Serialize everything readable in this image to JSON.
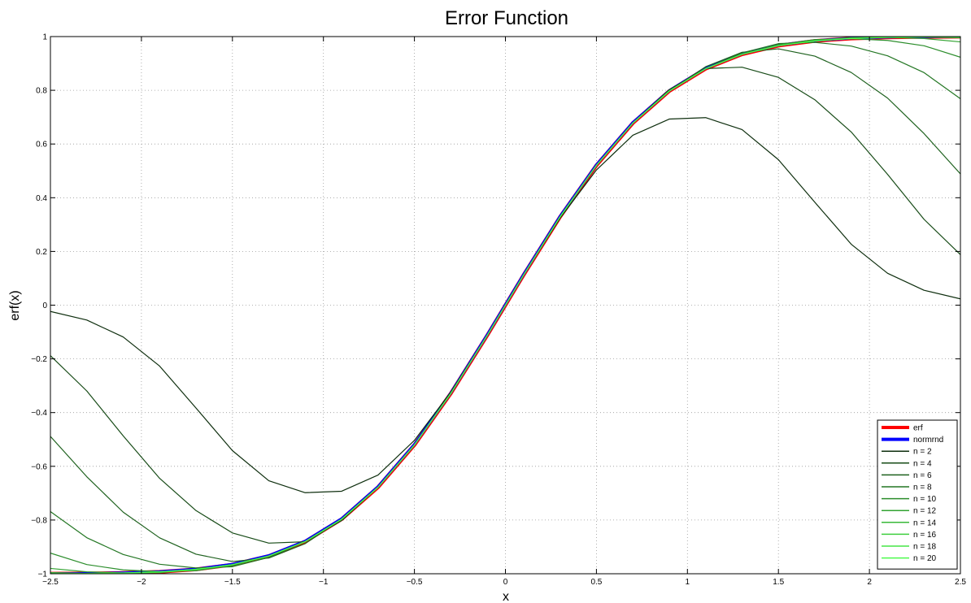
{
  "chart_data": {
    "type": "line",
    "title": "Error Function",
    "xlabel": "x",
    "ylabel": "erf(x)",
    "xlim": [
      -2.5,
      2.5
    ],
    "ylim": [
      -1,
      1
    ],
    "xticks": [
      -2.5,
      -2,
      -1.5,
      -1,
      -0.5,
      0,
      0.5,
      1,
      1.5,
      2,
      2.5
    ],
    "yticks": [
      -1,
      -0.8,
      -0.6,
      -0.4,
      -0.2,
      0,
      0.2,
      0.4,
      0.6,
      0.8,
      1
    ],
    "xtick_labels": [
      "−2.5",
      "−2",
      "−1.5",
      "−1",
      "−0.5",
      "0",
      "0.5",
      "1",
      "1.5",
      "2",
      "2.5"
    ],
    "ytick_labels": [
      "−1",
      "−0.8",
      "−0.6",
      "−0.4",
      "−0.2",
      "0",
      "0.2",
      "0.4",
      "0.6",
      "0.8",
      "1"
    ],
    "grid": true,
    "legend_position": "bottom-right",
    "x": [
      -2.5,
      -2.3,
      -2.1,
      -1.9,
      -1.7,
      -1.5,
      -1.3,
      -1.1,
      -0.9,
      -0.7,
      -0.5,
      -0.3,
      -0.1,
      0.1,
      0.3,
      0.5,
      0.7,
      0.9,
      1.1,
      1.3,
      1.5,
      1.7,
      1.9,
      2.1,
      2.3,
      2.5
    ],
    "series": [
      {
        "name": "erf",
        "color": "#ff0000",
        "width": 4.5,
        "values": [
          -0.9996,
          -0.9989,
          -0.997,
          -0.9928,
          -0.9838,
          -0.9661,
          -0.934,
          -0.8802,
          -0.7969,
          -0.6778,
          -0.5205,
          -0.3286,
          -0.1125,
          0.1125,
          0.3286,
          0.5205,
          0.6778,
          0.7969,
          0.8802,
          0.934,
          0.9661,
          0.9838,
          0.9928,
          0.997,
          0.9989,
          0.9996
        ]
      },
      {
        "name": "normrnd",
        "color": "#0000ff",
        "width": 3,
        "values": [
          -0.9993,
          -0.9986,
          -0.9962,
          -0.9915,
          -0.9823,
          -0.9642,
          -0.9318,
          -0.8778,
          -0.7945,
          -0.6752,
          -0.5178,
          -0.3259,
          -0.1098,
          0.1152,
          0.3313,
          0.5232,
          0.6804,
          0.7993,
          0.8826,
          0.9362,
          0.9681,
          0.9853,
          0.994,
          0.9978,
          0.9993,
          0.9998
        ]
      },
      {
        "name": "n = 2",
        "color": "#0e2e0e",
        "width": 1.2,
        "values": [
          -0.0234,
          -0.0555,
          -0.1186,
          -0.2268,
          -0.3831,
          -0.5416,
          -0.6537,
          -0.6982,
          -0.6928,
          -0.6327,
          -0.5034,
          -0.3236,
          -0.1124,
          0.1124,
          0.3236,
          0.5034,
          0.6327,
          0.6928,
          0.6982,
          0.6537,
          0.5416,
          0.3831,
          0.2268,
          0.1186,
          0.0555,
          0.0234
        ]
      },
      {
        "name": "n = 4",
        "color": "#174b17",
        "width": 1.2,
        "values": [
          -0.1881,
          -0.3196,
          -0.4868,
          -0.6448,
          -0.7648,
          -0.8481,
          -0.886,
          -0.8809,
          -0.8022,
          -0.6781,
          -0.5205,
          -0.3286,
          -0.1125,
          0.1125,
          0.3286,
          0.5205,
          0.6781,
          0.8022,
          0.8809,
          0.886,
          0.8481,
          0.7648,
          0.6448,
          0.4868,
          0.3196,
          0.1881
        ]
      },
      {
        "name": "n = 6",
        "color": "#1e611e",
        "width": 1.2,
        "values": [
          -0.4886,
          -0.6389,
          -0.7708,
          -0.8663,
          -0.9272,
          -0.9545,
          -0.9414,
          -0.8878,
          -0.7972,
          -0.6778,
          -0.5205,
          -0.3286,
          -0.1125,
          0.1125,
          0.3286,
          0.5205,
          0.6778,
          0.7972,
          0.8878,
          0.9414,
          0.9545,
          0.9272,
          0.8663,
          0.7708,
          0.6389,
          0.4886
        ]
      },
      {
        "name": "n = 8",
        "color": "#247724",
        "width": 1.2,
        "values": [
          -0.7686,
          -0.8658,
          -0.9282,
          -0.9646,
          -0.9784,
          -0.9738,
          -0.9392,
          -0.8812,
          -0.797,
          -0.6778,
          -0.5205,
          -0.3286,
          -0.1125,
          0.1125,
          0.3286,
          0.5205,
          0.6778,
          0.797,
          0.8812,
          0.9392,
          0.9738,
          0.9784,
          0.9646,
          0.9282,
          0.8658,
          0.7686
        ]
      },
      {
        "name": "n = 10",
        "color": "#2b8d2b",
        "width": 1.2,
        "values": [
          -0.9231,
          -0.9658,
          -0.9857,
          -0.9921,
          -0.9887,
          -0.9697,
          -0.9348,
          -0.8803,
          -0.7969,
          -0.6778,
          -0.5205,
          -0.3286,
          -0.1125,
          0.1125,
          0.3286,
          0.5205,
          0.6778,
          0.7969,
          0.8803,
          0.9348,
          0.9697,
          0.9887,
          0.9921,
          0.9857,
          0.9658,
          0.9231
        ]
      },
      {
        "name": "n = 12",
        "color": "#32a332",
        "width": 1.2,
        "values": [
          -0.9801,
          -0.9928,
          -0.9968,
          -0.9958,
          -0.9858,
          -0.967,
          -0.9342,
          -0.8802,
          -0.7969,
          -0.6778,
          -0.5205,
          -0.3286,
          -0.1125,
          0.1125,
          0.3286,
          0.5205,
          0.6778,
          0.7969,
          0.8802,
          0.9342,
          0.967,
          0.9858,
          0.9958,
          0.9968,
          0.9928,
          0.9801
        ]
      },
      {
        "name": "n = 14",
        "color": "#38b938",
        "width": 1.2,
        "values": [
          -0.9958,
          -0.9986,
          -0.9984,
          -0.9943,
          -0.9843,
          -0.9663,
          -0.934,
          -0.8802,
          -0.7969,
          -0.6778,
          -0.5205,
          -0.3286,
          -0.1125,
          0.1125,
          0.3286,
          0.5205,
          0.6778,
          0.7969,
          0.8802,
          0.934,
          0.9663,
          0.9843,
          0.9943,
          0.9984,
          0.9986,
          0.9958
        ]
      },
      {
        "name": "n = 16",
        "color": "#3fcf3f",
        "width": 1.2,
        "values": [
          -0.9992,
          -0.9996,
          -0.9979,
          -0.9932,
          -0.9839,
          -0.9661,
          -0.934,
          -0.8802,
          -0.7969,
          -0.6778,
          -0.5205,
          -0.3286,
          -0.1125,
          0.1125,
          0.3286,
          0.5205,
          0.6778,
          0.7969,
          0.8802,
          0.934,
          0.9661,
          0.9839,
          0.9932,
          0.9979,
          0.9996,
          0.9992
        ]
      },
      {
        "name": "n = 18",
        "color": "#46e546",
        "width": 1.2,
        "values": [
          -0.9999,
          -0.9992,
          -0.9972,
          -0.9929,
          -0.9838,
          -0.9661,
          -0.934,
          -0.8802,
          -0.7969,
          -0.6778,
          -0.5205,
          -0.3286,
          -0.1125,
          0.1125,
          0.3286,
          0.5205,
          0.6778,
          0.7969,
          0.8802,
          0.934,
          0.9661,
          0.9838,
          0.9929,
          0.9972,
          0.9992,
          0.9999
        ]
      },
      {
        "name": "n = 20",
        "color": "#4cfb4c",
        "width": 1.2,
        "values": [
          -0.9998,
          -0.999,
          -0.997,
          -0.9928,
          -0.9838,
          -0.9661,
          -0.934,
          -0.8802,
          -0.7969,
          -0.6778,
          -0.5205,
          -0.3286,
          -0.1125,
          0.1125,
          0.3286,
          0.5205,
          0.6778,
          0.7969,
          0.8802,
          0.934,
          0.9661,
          0.9838,
          0.9928,
          0.997,
          0.999,
          0.9998
        ]
      }
    ]
  }
}
